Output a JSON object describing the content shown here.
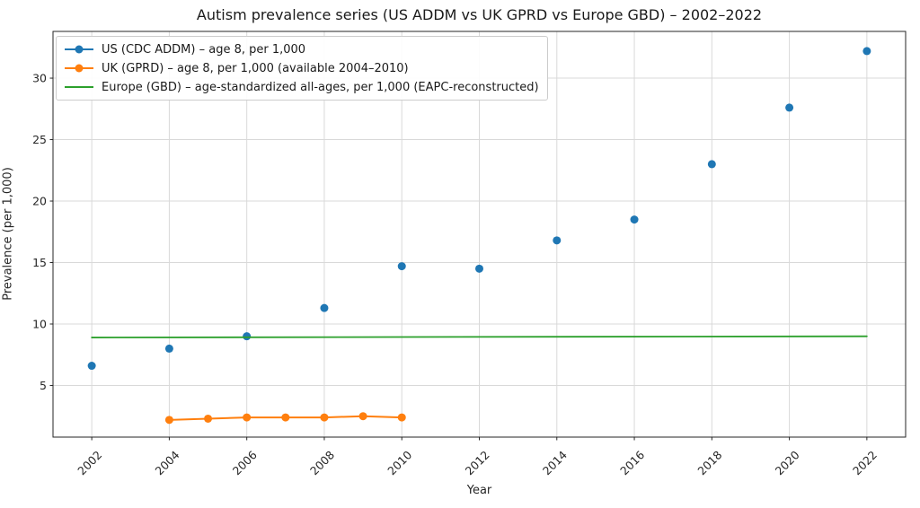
{
  "chart_data": {
    "type": "line",
    "title": "Autism prevalence series (US ADDM vs UK GPRD vs Europe GBD) – 2002–2022",
    "xlabel": "Year",
    "ylabel": "Prevalence (per 1,000)",
    "xlim": [
      2001,
      2023
    ],
    "ylim": [
      0.8,
      33.8
    ],
    "xticks": [
      2002,
      2004,
      2006,
      2008,
      2010,
      2012,
      2014,
      2016,
      2018,
      2020,
      2022
    ],
    "yticks": [
      5,
      10,
      15,
      20,
      25,
      30
    ],
    "grid": true,
    "legend_position": "upper left",
    "colors": {
      "grid": "#d9d9d9",
      "spine": "#262626",
      "tick_text": "#262626"
    },
    "series": [
      {
        "name": "US (CDC ADDM) – age 8, per 1,000",
        "color": "#1f77b4",
        "marker": "circle",
        "show_line": false,
        "legend_sample": "line-marker",
        "x": [
          2002,
          2004,
          2006,
          2008,
          2010,
          2012,
          2014,
          2016,
          2018,
          2020,
          2022
        ],
        "values": [
          6.6,
          8.0,
          9.0,
          11.3,
          14.7,
          14.5,
          16.8,
          18.5,
          23.0,
          27.6,
          32.2
        ]
      },
      {
        "name": "UK (GPRD) – age 8, per 1,000 (available 2004–2010)",
        "color": "#ff7f0e",
        "marker": "circle",
        "show_line": true,
        "legend_sample": "line-marker",
        "x": [
          2004,
          2005,
          2006,
          2007,
          2008,
          2009,
          2010
        ],
        "values": [
          2.2,
          2.3,
          2.4,
          2.4,
          2.4,
          2.5,
          2.4
        ]
      },
      {
        "name": "Europe (GBD) – age-standardized all-ages, per 1,000 (EAPC-reconstructed)",
        "color": "#2ca02c",
        "marker": null,
        "show_line": true,
        "legend_sample": "line",
        "x": [
          2002,
          2022
        ],
        "values": [
          8.9,
          9.0
        ]
      }
    ]
  }
}
